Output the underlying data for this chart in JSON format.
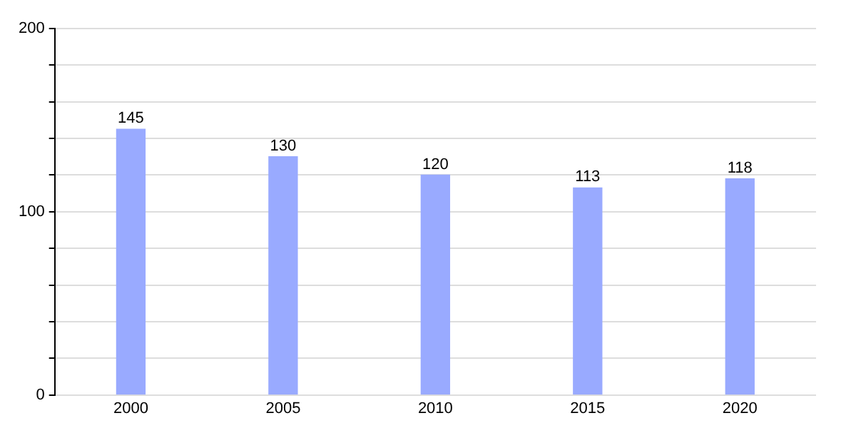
{
  "chart_data": {
    "type": "bar",
    "categories": [
      "2000",
      "2005",
      "2010",
      "2015",
      "2020"
    ],
    "values": [
      145,
      130,
      120,
      113,
      118
    ],
    "color": "#99aaff",
    "ylim": [
      0,
      200
    ],
    "yticks": [
      0,
      {
        "value": 20,
        "label": null
      },
      {
        "value": 40,
        "label": null
      },
      {
        "value": 60,
        "label": null
      },
      {
        "value": 80,
        "label": null
      },
      100,
      {
        "value": 120,
        "label": null
      },
      {
        "value": 140,
        "label": null
      },
      {
        "value": 160,
        "label": null
      },
      {
        "value": 180,
        "label": null
      },
      200
    ],
    "grid": "y",
    "data_labels": true
  }
}
